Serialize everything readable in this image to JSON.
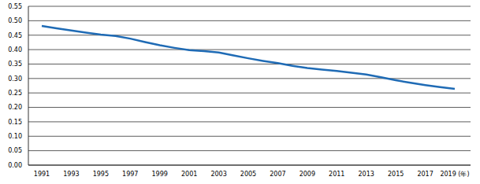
{
  "chart_data": {
    "type": "line",
    "categories": [
      "1991",
      null,
      "1993",
      null,
      "1995",
      null,
      "1997",
      null,
      "1999",
      null,
      "2001",
      null,
      "2003",
      null,
      "2005",
      null,
      "2007",
      null,
      "2009",
      null,
      "2011",
      null,
      "2013",
      null,
      "2015",
      null,
      "2017",
      null,
      "2019 (年)"
    ],
    "values": [
      0.482,
      0.474,
      0.466,
      0.459,
      0.452,
      0.447,
      0.438,
      0.426,
      0.415,
      0.406,
      0.398,
      0.395,
      0.39,
      0.38,
      0.37,
      0.361,
      0.353,
      0.344,
      0.336,
      0.331,
      0.326,
      0.32,
      0.314,
      0.304,
      0.294,
      0.285,
      0.277,
      0.27,
      0.264
    ],
    "color": "#1f6bb5",
    "ylim": [
      0,
      0.55
    ],
    "yticks": [
      {
        "value": 0,
        "label": "0.00"
      },
      0.05,
      {
        "value": 0.1,
        "label": "0.10"
      },
      0.15,
      {
        "value": 0.2,
        "label": "0.20"
      },
      0.25,
      {
        "value": 0.3,
        "label": "0.30"
      },
      0.35,
      {
        "value": 0.4,
        "label": "0.40"
      },
      0.45,
      {
        "value": 0.5,
        "label": "0.50"
      },
      0.55
    ],
    "grid": true
  }
}
